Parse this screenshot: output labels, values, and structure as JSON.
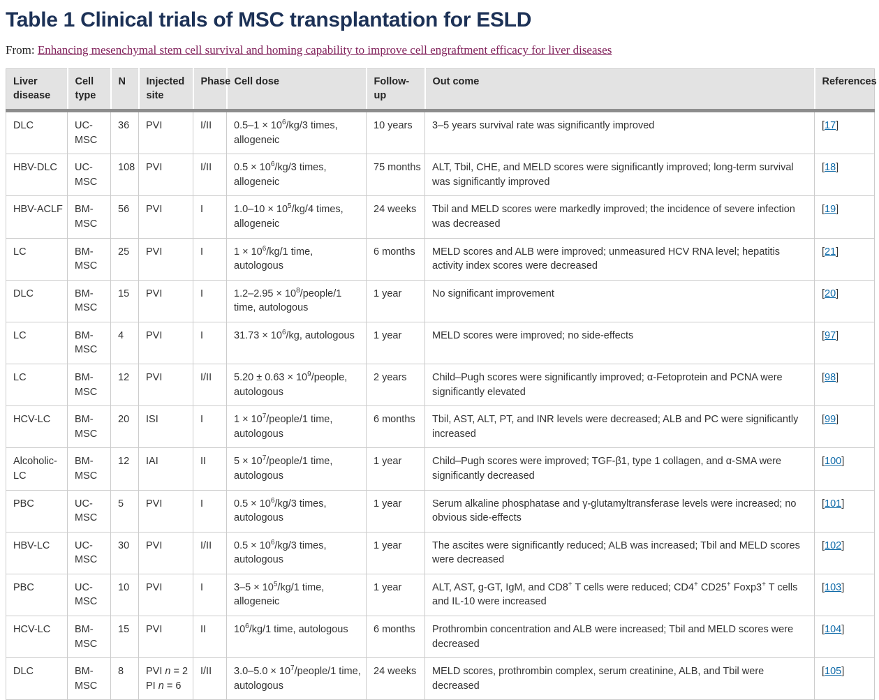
{
  "header": {
    "title": "Table 1 Clinical trials of MSC transplantation for ESLD",
    "from_label": "From:",
    "source_article": "Enhancing mesenchymal stem cell survival and homing capability to improve cell engraftment efficacy for liver diseases"
  },
  "colors": {
    "title_text": "#1c3156",
    "source_link": "#82235c",
    "reference_link": "#0e6aa8",
    "table_header_bg": "#e3e3e3",
    "table_header_bar": "#8d8d8d",
    "table_border": "#cccccc",
    "body_text": "#333333"
  },
  "table": {
    "columns": [
      "Liver disease",
      "Cell type",
      "N",
      "Injected site",
      "Phase",
      "Cell dose",
      "Follow-up",
      "Out come",
      "References"
    ],
    "rows": [
      {
        "liver_disease": "DLC",
        "cell_type": "UC-MSC",
        "n": "36",
        "injected_site": "PVI",
        "phase": "I/II",
        "cell_dose": "0.5–1 × 10~6~/kg/3 times, allogeneic",
        "follow_up": "10 years",
        "outcome": "3–5 years survival rate was significantly improved",
        "reference": "[17]"
      },
      {
        "liver_disease": "HBV-DLC",
        "cell_type": "UC-MSC",
        "n": "108",
        "injected_site": "PVI",
        "phase": "I/II",
        "cell_dose": "0.5 × 10~6~/kg/3 times, allogeneic",
        "follow_up": "75 months",
        "outcome": "ALT, Tbil, CHE, and MELD scores were significantly improved; long-term survival was significantly improved",
        "reference": "[18]"
      },
      {
        "liver_disease": "HBV-ACLF",
        "cell_type": "BM-MSC",
        "n": "56",
        "injected_site": "PVI",
        "phase": "I",
        "cell_dose": "1.0–10 × 10~5~/kg/4 times, allogeneic",
        "follow_up": "24 weeks",
        "outcome": "Tbil and MELD scores were markedly improved; the incidence of severe infection was decreased",
        "reference": "[19]"
      },
      {
        "liver_disease": "LC",
        "cell_type": "BM-MSC",
        "n": "25",
        "injected_site": "PVI",
        "phase": "I",
        "cell_dose": "1 × 10~6~/kg/1 time, autologous",
        "follow_up": "6 months",
        "outcome": "MELD scores and ALB were improved; unmeasured HCV RNA level; hepatitis activity index scores were decreased",
        "reference": "[21]"
      },
      {
        "liver_disease": "DLC",
        "cell_type": "BM-MSC",
        "n": "15",
        "injected_site": "PVI",
        "phase": "I",
        "cell_dose": "1.2–2.95 × 10~8~/people/1 time, autologous",
        "follow_up": "1 year",
        "outcome": "No significant improvement",
        "reference": "[20]"
      },
      {
        "liver_disease": "LC",
        "cell_type": "BM-MSC",
        "n": "4",
        "injected_site": "PVI",
        "phase": "I",
        "cell_dose": "31.73 × 10~6~/kg, autologous",
        "follow_up": "1 year",
        "outcome": "MELD scores were improved; no side-effects",
        "reference": "[97]"
      },
      {
        "liver_disease": "LC",
        "cell_type": "BM-MSC",
        "n": "12",
        "injected_site": "PVI",
        "phase": "I/II",
        "cell_dose": "5.20 ± 0.63 × 10~9~/people, autologous",
        "follow_up": "2 years",
        "outcome": "Child–Pugh scores were significantly improved; α-Fetoprotein and PCNA were significantly elevated",
        "reference": "[98]"
      },
      {
        "liver_disease": "HCV-LC",
        "cell_type": "BM-MSC",
        "n": "20",
        "injected_site": "ISI",
        "phase": "I",
        "cell_dose": "1 × 10~7~/people/1 time, autologous",
        "follow_up": "6 months",
        "outcome": "Tbil, AST, ALT, PT, and INR levels were decreased; ALB and PC were significantly increased",
        "reference": "[99]"
      },
      {
        "liver_disease": "Alcoholic-LC",
        "cell_type": "BM-MSC",
        "n": "12",
        "injected_site": "IAI",
        "phase": "II",
        "cell_dose": "5 × 10~7~/people/1 time, autologous",
        "follow_up": "1 year",
        "outcome": "Child–Pugh scores were improved; TGF-β1, type 1 collagen, and α-SMA were significantly decreased",
        "reference": "[100]"
      },
      {
        "liver_disease": "PBC",
        "cell_type": "UC-MSC",
        "n": "5",
        "injected_site": "PVI",
        "phase": "I",
        "cell_dose": "0.5 × 10~6~/kg/3 times, autologous",
        "follow_up": "1 year",
        "outcome": "Serum alkaline phosphatase and γ-glutamyltransferase levels were increased; no obvious side-effects",
        "reference": "[101]"
      },
      {
        "liver_disease": "HBV-LC",
        "cell_type": "UC-MSC",
        "n": "30",
        "injected_site": "PVI",
        "phase": "I/II",
        "cell_dose": "0.5 × 10~6~/kg/3 times, autologous",
        "follow_up": "1 year",
        "outcome": "The ascites were significantly reduced; ALB was increased; Tbil and MELD scores were decreased",
        "reference": "[102]"
      },
      {
        "liver_disease": "PBC",
        "cell_type": "UC-MSC",
        "n": "10",
        "injected_site": "PVI",
        "phase": "I",
        "cell_dose": "3–5 × 10~5~/kg/1 time, allogeneic",
        "follow_up": "1 year",
        "outcome": "ALT, AST, g-GT, IgM, and CD8~+~ T cells were reduced; CD4~+~ CD25~+~ Foxp3~+~ T cells and IL-10 were increased",
        "reference": "[103]"
      },
      {
        "liver_disease": "HCV-LC",
        "cell_type": "BM-MSC",
        "n": "15",
        "injected_site": "PVI",
        "phase": "II",
        "cell_dose": "10~6~/kg/1 time, autologous",
        "follow_up": "6 months",
        "outcome": "Prothrombin concentration and ALB were increased; Tbil and MELD scores were decreased",
        "reference": "[104]"
      },
      {
        "liver_disease": "DLC",
        "cell_type": "BM-MSC",
        "n": "8",
        "injected_site": "PVI _n_ = 2\nPI _n_ = 6",
        "phase": "I/II",
        "cell_dose": "3.0–5.0 × 10~7~/people/1 time, autologous",
        "follow_up": "24 weeks",
        "outcome": "MELD scores, prothrombin complex, serum creatinine, ALB, and Tbil were decreased",
        "reference": "[105]"
      }
    ]
  }
}
